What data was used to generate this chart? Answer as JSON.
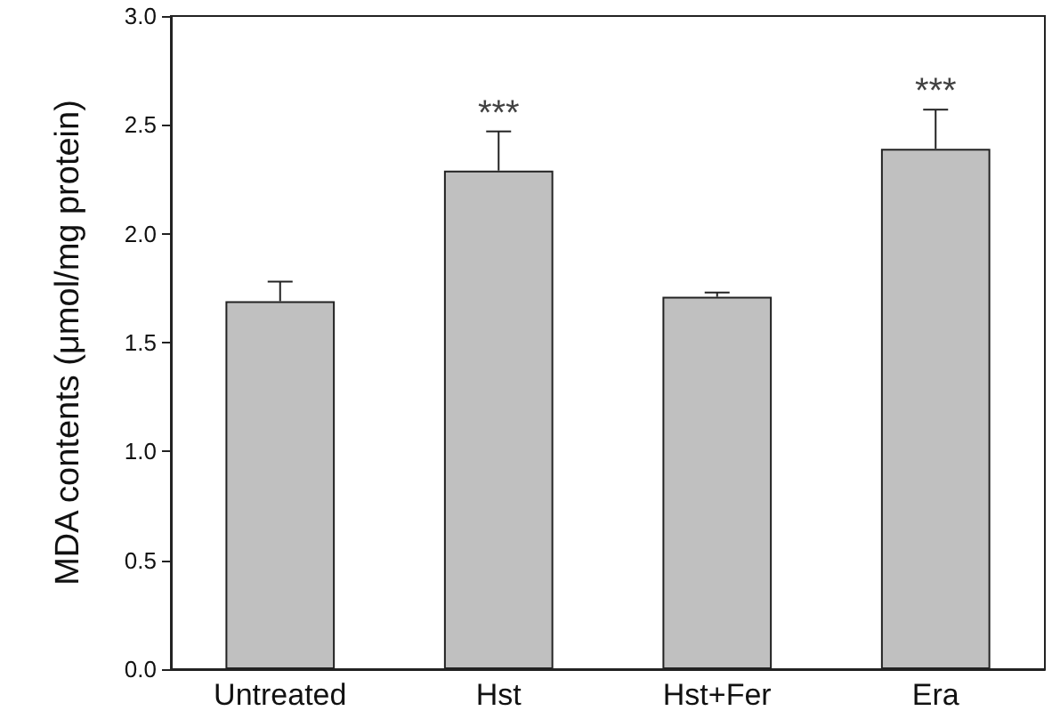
{
  "chart_data": {
    "type": "bar",
    "ylabel": "MDA contents (μmol/mg protein)",
    "categories": [
      "Untreated",
      "Hst",
      "Hst+Fer",
      "Era"
    ],
    "values": [
      1.69,
      2.29,
      1.71,
      2.39
    ],
    "errors": [
      [
        1.69,
        1.78
      ],
      [
        2.29,
        2.47
      ],
      [
        1.71,
        1.73
      ],
      [
        2.39,
        2.57
      ]
    ],
    "color": "#c0c0c0",
    "ylim": [
      0,
      3
    ],
    "yticks": [
      {
        "value": 0,
        "label": "0.0"
      },
      0.5,
      {
        "value": 1,
        "label": "1.0"
      },
      1.5,
      {
        "value": 2,
        "label": "2.0"
      },
      2.5,
      {
        "value": 3,
        "label": "3.0"
      }
    ],
    "annotations": [
      {
        "text": "***",
        "x": "Hst",
        "y": 2.47
      },
      {
        "text": "***",
        "x": "Era",
        "y": 2.57
      }
    ]
  }
}
